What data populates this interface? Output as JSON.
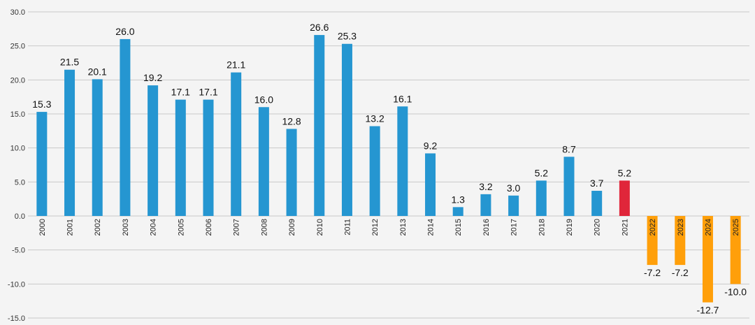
{
  "chart_data": {
    "type": "bar",
    "title": "",
    "xlabel": "",
    "ylabel": "",
    "ylim": [
      -15.0,
      30.0
    ],
    "yticks": [
      "30.0",
      "25.0",
      "20.0",
      "15.0",
      "10.0",
      "5.0",
      "0.0",
      "-5.0",
      "-10.0",
      "-15.0"
    ],
    "ytick_values": [
      30,
      25,
      20,
      15,
      10,
      5,
      0,
      -5,
      -10,
      -15
    ],
    "grid": true,
    "categories": [
      "2000",
      "2001",
      "2002",
      "2003",
      "2004",
      "2005",
      "2006",
      "2007",
      "2008",
      "2009",
      "2010",
      "2011",
      "2012",
      "2013",
      "2014",
      "2015",
      "2016",
      "2017",
      "2018",
      "2019",
      "2020",
      "2021",
      "2022",
      "2023",
      "2024",
      "2025"
    ],
    "values": [
      15.3,
      21.5,
      20.1,
      26.0,
      19.2,
      17.1,
      17.1,
      21.1,
      16.0,
      12.8,
      26.6,
      25.3,
      13.2,
      16.1,
      9.2,
      1.3,
      3.2,
      3.0,
      5.2,
      8.7,
      3.7,
      5.2,
      -7.2,
      -7.2,
      -12.7,
      -10.0
    ],
    "labels": [
      "15.3",
      "21.5",
      "20.1",
      "26.0",
      "19.2",
      "17.1",
      "17.1",
      "21.1",
      "16.0",
      "12.8",
      "26.6",
      "25.3",
      "13.2",
      "16.1",
      "9.2",
      "1.3",
      "3.2",
      "3.0",
      "5.2",
      "8.7",
      "3.7",
      "5.2",
      "-7.2",
      "-7.2",
      "-12.7",
      "-10.0"
    ],
    "colors": {
      "historical": "#2596d1",
      "highlight": "#e0263a",
      "forecast": "#ff9f0a"
    },
    "highlight_categories": [
      "2021"
    ],
    "forecast_categories": [
      "2022",
      "2023",
      "2024",
      "2025"
    ]
  }
}
